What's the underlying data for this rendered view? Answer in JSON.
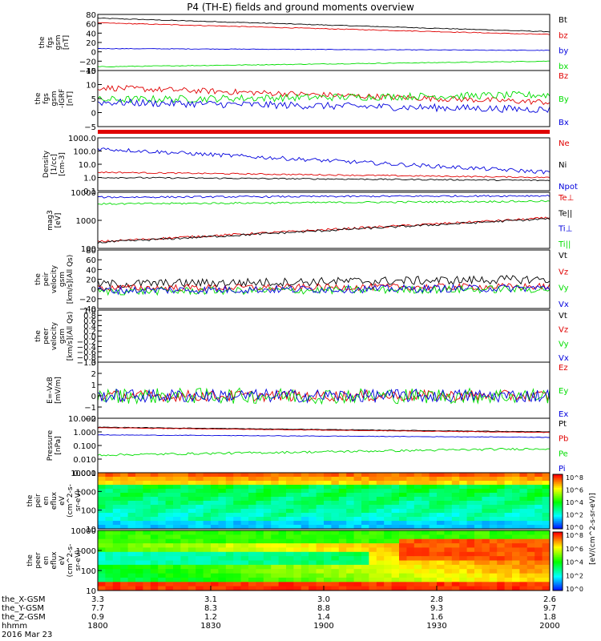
{
  "title": "P4 (TH-E) fields and ground moments overview",
  "colors": {
    "black": "#000000",
    "red": "#e00000",
    "green": "#00dd00",
    "blue": "#0000dd"
  },
  "x_axis": {
    "ticks": [
      "1800",
      "1830",
      "1900",
      "1930",
      "2000"
    ],
    "rows": [
      {
        "label": "the_X-GSM",
        "values": [
          "3.3",
          "3.1",
          "3.0",
          "2.8",
          "2.6"
        ]
      },
      {
        "label": "the_Y-GSM",
        "values": [
          "7.7",
          "8.3",
          "8.8",
          "9.3",
          "9.7"
        ]
      },
      {
        "label": "the_Z-GSM",
        "values": [
          "0.9",
          "1.2",
          "1.4",
          "1.6",
          "1.8"
        ]
      },
      {
        "label": "hhmm",
        "values": [
          "1800",
          "1830",
          "1900",
          "1930",
          "2000"
        ]
      }
    ],
    "date": "2016 Mar 23"
  },
  "colorbar": {
    "label": "[eV/(cm^2-s-sr-eV)]",
    "upper_ticks": [
      "10^8",
      "10^6",
      "10^4",
      "10^2",
      "10^0"
    ],
    "lower_ticks": [
      "10^8",
      "10^6",
      "10^4",
      "10^2",
      "10^0"
    ]
  },
  "chart_data": [
    {
      "type": "line",
      "id": "fgs",
      "ylabel": [
        "the",
        "fgs",
        "gsm",
        "[nT]"
      ],
      "yticks": [
        "80",
        "60",
        "40",
        "20",
        "0",
        "−20",
        "−40"
      ],
      "ylim": [
        -40,
        80
      ],
      "series": [
        {
          "name": "Bt",
          "color": "black",
          "start": 72,
          "end": 43,
          "noise": 0.8
        },
        {
          "name": "bz",
          "color": "red",
          "start": 62,
          "end": 37,
          "noise": 0.8
        },
        {
          "name": "by",
          "color": "blue",
          "start": 7,
          "end": 3,
          "noise": 0.6
        },
        {
          "name": "bx",
          "color": "green",
          "start": -32,
          "end": -20,
          "noise": 0.8
        }
      ]
    },
    {
      "type": "line",
      "id": "fgs_dtr",
      "ylabel": [
        "the",
        "fgs",
        "gsm",
        "-IGRF",
        "[nT]"
      ],
      "yticks": [
        "15",
        "10",
        "5",
        "0",
        "−5"
      ],
      "ylim": [
        -8,
        15
      ],
      "series": [
        {
          "name": "Bz",
          "color": "red",
          "start": 8,
          "end": 2,
          "noise": 1.2
        },
        {
          "name": "By",
          "color": "green",
          "start": 3,
          "end": 5,
          "noise": 1.5
        },
        {
          "name": "Bx",
          "color": "blue",
          "start": 2,
          "end": -1,
          "noise": 1.5
        }
      ]
    },
    {
      "type": "line",
      "id": "density",
      "ylabel": [
        "Density",
        "[1/cc]",
        "[cm-3]"
      ],
      "yticks": [
        "1000.0",
        "100.0",
        "10.0",
        "1.0",
        "0.1"
      ],
      "ylim": [
        0.1,
        1000
      ],
      "log": true,
      "series": [
        {
          "name": "Ne",
          "color": "red",
          "start": 2.5,
          "end": 1.0,
          "noise": 0.05
        },
        {
          "name": "Ni",
          "color": "black",
          "start": 1.0,
          "end": 0.6,
          "noise": 0.05
        },
        {
          "name": "Npot",
          "color": "blue",
          "start": 150,
          "end": 2.5,
          "noise": 0.15
        }
      ]
    },
    {
      "type": "line",
      "id": "temp",
      "ylabel": [
        "mag3",
        "[eV]"
      ],
      "yticks": [
        "10000",
        "1000",
        "100"
      ],
      "ylim": [
        30,
        10000
      ],
      "log": true,
      "series": [
        {
          "name": "Te⊥",
          "color": "red",
          "start": 60,
          "end": 700,
          "noise": 0.05
        },
        {
          "name": "Te||",
          "color": "black",
          "start": 55,
          "end": 650,
          "noise": 0.05
        },
        {
          "name": "Ti⊥",
          "color": "blue",
          "start": 6000,
          "end": 7000,
          "noise": 0.04
        },
        {
          "name": "Ti||",
          "color": "green",
          "start": 3000,
          "end": 4000,
          "noise": 0.04
        }
      ]
    },
    {
      "type": "line",
      "id": "peir_v",
      "ylabel": [
        "the",
        "peir",
        "velocity",
        "gsm",
        "[km/s](All Qs)"
      ],
      "yticks": [
        "80",
        "60",
        "40",
        "20",
        "0",
        "−20",
        "−40"
      ],
      "ylim": [
        -40,
        80
      ],
      "series": [
        {
          "name": "Vt",
          "color": "black",
          "start": 10,
          "end": 20,
          "noise": 9
        },
        {
          "name": "Vz",
          "color": "red",
          "start": 2,
          "end": 5,
          "noise": 7
        },
        {
          "name": "Vy",
          "color": "green",
          "start": -5,
          "end": 0,
          "noise": 8
        },
        {
          "name": "Vx",
          "color": "blue",
          "start": -3,
          "end": 2,
          "noise": 8
        }
      ]
    },
    {
      "type": "line",
      "id": "peer_v",
      "ylabel": [
        "the",
        "peer",
        "velocity",
        "gsm",
        "[km/s](All Qs)"
      ],
      "yticks": [
        "1.0",
        "0.8",
        "0.6",
        "0.4",
        "0.2",
        "0.0",
        "−0.2",
        "−0.4",
        "−0.6",
        "−0.8",
        "−1.0"
      ],
      "ylim": [
        -1,
        1
      ],
      "series": [
        {
          "name": "Vt",
          "color": "black"
        },
        {
          "name": "Vz",
          "color": "red"
        },
        {
          "name": "Vy",
          "color": "green"
        },
        {
          "name": "Vx",
          "color": "blue"
        }
      ]
    },
    {
      "type": "line",
      "id": "efield",
      "ylabel": [
        "E=-VxB",
        "[mV/m]"
      ],
      "yticks": [
        "3",
        "2",
        "1",
        "0",
        "−1",
        "−2"
      ],
      "ylim": [
        -2,
        3
      ],
      "series": [
        {
          "name": "Ez",
          "color": "red",
          "start": 0,
          "end": 0,
          "noise": 0.5
        },
        {
          "name": "Ey",
          "color": "green",
          "start": 0,
          "end": 0,
          "noise": 0.7
        },
        {
          "name": "Ex",
          "color": "blue",
          "start": 0,
          "end": 0,
          "noise": 0.6
        }
      ]
    },
    {
      "type": "line",
      "id": "pressure",
      "ylabel": [
        "Pressure",
        "[nPa]"
      ],
      "yticks": [
        "10.000",
        "1.000",
        "0.100",
        "0.010",
        "0.001"
      ],
      "ylim": [
        0.001,
        10
      ],
      "log": true,
      "series": [
        {
          "name": "Pt",
          "color": "black",
          "start": 2.2,
          "end": 1.0,
          "noise": 0.02
        },
        {
          "name": "Pb",
          "color": "red",
          "start": 2.0,
          "end": 0.9,
          "noise": 0.02
        },
        {
          "name": "Pe",
          "color": "green",
          "start": 0.02,
          "end": 0.06,
          "noise": 0.08
        },
        {
          "name": "Pi",
          "color": "blue",
          "start": 0.6,
          "end": 0.4,
          "noise": 0.02
        }
      ]
    },
    {
      "type": "heatmap",
      "id": "peir_eflux",
      "ylabel": [
        "the",
        "peir",
        "en",
        "eflux",
        "eV",
        "(cm^2-s-",
        "sr-eV)"
      ],
      "yticks": [
        "10000",
        "1000",
        "100",
        "10"
      ],
      "ylim": [
        5,
        25000
      ],
      "log": true
    },
    {
      "type": "heatmap",
      "id": "peer_eflux",
      "ylabel": [
        "the",
        "peer",
        "en",
        "eflux",
        "eV",
        "(cm^2-s-",
        "sr-eV)"
      ],
      "yticks": [
        "10000",
        "1000",
        "100",
        "10"
      ],
      "ylim": [
        5,
        25000
      ],
      "log": true
    }
  ]
}
